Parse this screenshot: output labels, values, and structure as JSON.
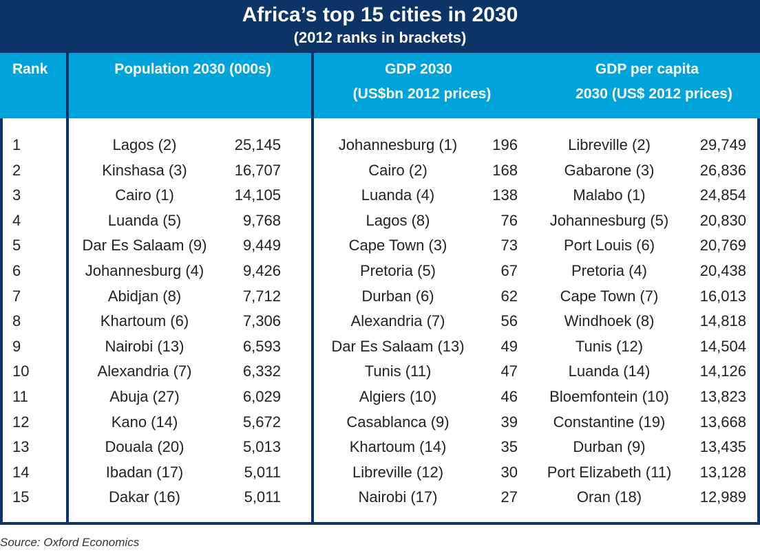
{
  "chart_data": {
    "type": "table",
    "title": "Africa’s top 15 cities in 2030",
    "subtitle": "(2012 ranks in brackets)",
    "columns": {
      "rank": "Rank",
      "population": "Population 2030 (000s)",
      "gdp_line1": "GDP 2030",
      "gdp_line2": "(US$bn 2012 prices)",
      "gdppc_line1": "GDP per capita",
      "gdppc_line2": "2030 (US$ 2012 prices)"
    },
    "rows": [
      {
        "rank": "1",
        "pop_city": "Lagos (2)",
        "pop": "25,145",
        "gdp_city": "Johannesburg (1)",
        "gdp": "196",
        "pc_city": "Libreville (2)",
        "pc": "29,749"
      },
      {
        "rank": "2",
        "pop_city": "Kinshasa (3)",
        "pop": "16,707",
        "gdp_city": "Cairo (2)",
        "gdp": "168",
        "pc_city": "Gabarone (3)",
        "pc": "26,836"
      },
      {
        "rank": "3",
        "pop_city": "Cairo (1)",
        "pop": "14,105",
        "gdp_city": "Luanda (4)",
        "gdp": "138",
        "pc_city": "Malabo (1)",
        "pc": "24,854"
      },
      {
        "rank": "4",
        "pop_city": "Luanda (5)",
        "pop": "9,768",
        "gdp_city": "Lagos (8)",
        "gdp": "76",
        "pc_city": "Johannesburg (5)",
        "pc": "20,830"
      },
      {
        "rank": "5",
        "pop_city": "Dar Es Salaam (9)",
        "pop": "9,449",
        "gdp_city": "Cape Town (3)",
        "gdp": "73",
        "pc_city": "Port Louis (6)",
        "pc": "20,769"
      },
      {
        "rank": "6",
        "pop_city": "Johannesburg (4)",
        "pop": "9,426",
        "gdp_city": "Pretoria (5)",
        "gdp": "67",
        "pc_city": "Pretoria (4)",
        "pc": "20,438"
      },
      {
        "rank": "7",
        "pop_city": "Abidjan (8)",
        "pop": "7,712",
        "gdp_city": "Durban (6)",
        "gdp": "62",
        "pc_city": "Cape Town (7)",
        "pc": "16,013"
      },
      {
        "rank": "8",
        "pop_city": "Khartoum (6)",
        "pop": "7,306",
        "gdp_city": "Alexandria (7)",
        "gdp": "56",
        "pc_city": "Windhoek (8)",
        "pc": "14,818"
      },
      {
        "rank": "9",
        "pop_city": "Nairobi (13)",
        "pop": "6,593",
        "gdp_city": "Dar Es Salaam (13)",
        "gdp": "49",
        "pc_city": "Tunis (12)",
        "pc": "14,504"
      },
      {
        "rank": "10",
        "pop_city": "Alexandria (7)",
        "pop": "6,332",
        "gdp_city": "Tunis (11)",
        "gdp": "47",
        "pc_city": "Luanda (14)",
        "pc": "14,126"
      },
      {
        "rank": "11",
        "pop_city": "Abuja (27)",
        "pop": "6,029",
        "gdp_city": "Algiers (10)",
        "gdp": "46",
        "pc_city": "Bloemfontein (10)",
        "pc": "13,823"
      },
      {
        "rank": "12",
        "pop_city": "Kano (14)",
        "pop": "5,672",
        "gdp_city": "Casablanca (9)",
        "gdp": "39",
        "pc_city": "Constantine (19)",
        "pc": "13,668"
      },
      {
        "rank": "13",
        "pop_city": "Douala (20)",
        "pop": "5,013",
        "gdp_city": "Khartoum (14)",
        "gdp": "35",
        "pc_city": "Durban (9)",
        "pc": "13,435"
      },
      {
        "rank": "14",
        "pop_city": "Ibadan (17)",
        "pop": "5,011",
        "gdp_city": "Libreville (12)",
        "gdp": "30",
        "pc_city": "Port Elizabeth (11)",
        "pc": "13,128"
      },
      {
        "rank": "15",
        "pop_city": "Dakar (16)",
        "pop": "5,011",
        "gdp_city": "Nairobi (17)",
        "gdp": "27",
        "pc_city": "Oran (18)",
        "pc": "12,989"
      }
    ],
    "source": "Source: Oxford Economics"
  },
  "colors": {
    "title_band": "#0d3466",
    "header_band": "#00a3da",
    "divider": "#0d3466",
    "text": "#222222"
  }
}
